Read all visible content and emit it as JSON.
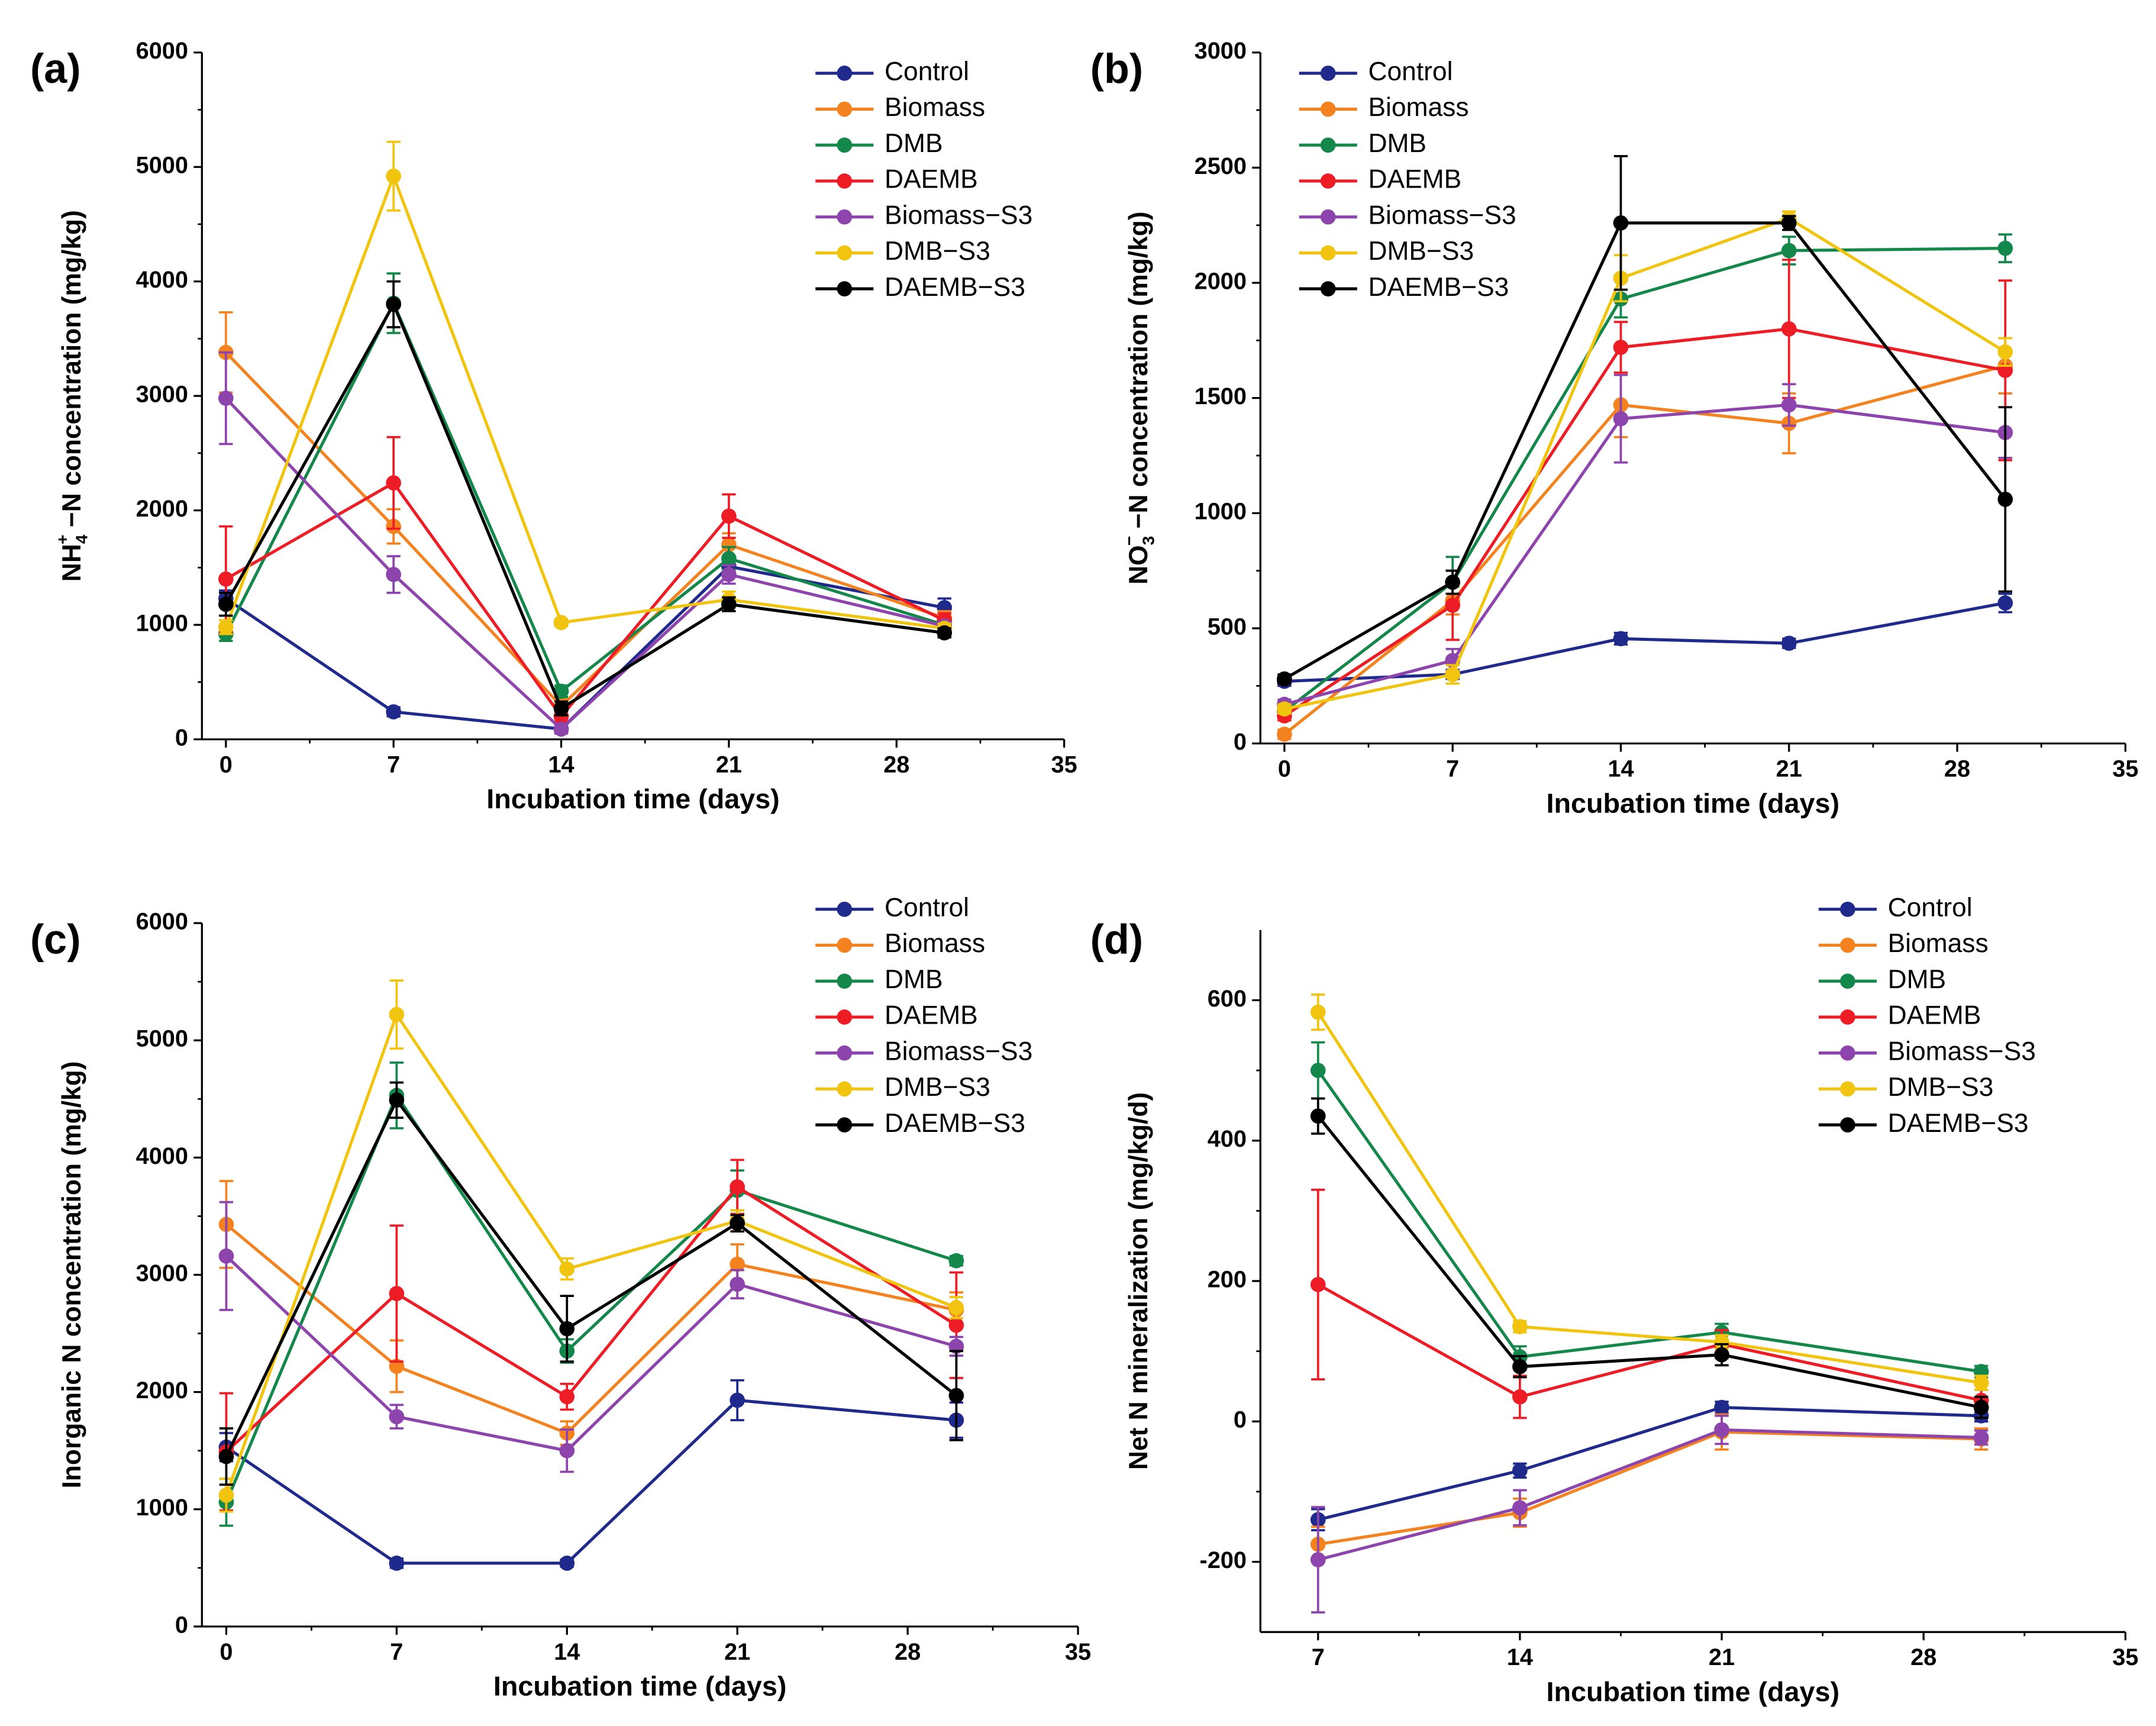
{
  "figure": {
    "series_colors": {
      "Control": "#1f2a8c",
      "Biomass": "#f4831f",
      "DMB": "#14884a",
      "DAEMB": "#ee1c25",
      "Biomass−S3": "#8e44ad",
      "DMB−S3": "#f1c40f",
      "DAEMB−S3": "#000000"
    }
  },
  "chart_data": [
    {
      "panel": "(a)",
      "type": "line",
      "xlabel": "Incubation time (days)",
      "ylabel": "NH4+−N concentration (mg/kg)",
      "ylabel_parts": {
        "base": "NH",
        "sub": "4",
        "sup": "+",
        "rest": " −N concentration (mg/kg)"
      },
      "xlim": [
        -1,
        35
      ],
      "ylim": [
        0,
        6000
      ],
      "xticks": [
        0,
        7,
        14,
        21,
        28,
        35
      ],
      "yticks": [
        0,
        1000,
        2000,
        3000,
        4000,
        5000,
        6000
      ],
      "legend_position": "top-right",
      "x": [
        0,
        7,
        14,
        21,
        30
      ],
      "series": [
        {
          "name": "Control",
          "values": [
            1230,
            240,
            90,
            1510,
            1150
          ],
          "errors": [
            70,
            40,
            30,
            70,
            80
          ]
        },
        {
          "name": "Biomass",
          "values": [
            3380,
            1860,
            290,
            1700,
            1060
          ],
          "errors": [
            350,
            150,
            60,
            100,
            60
          ]
        },
        {
          "name": "DMB",
          "values": [
            920,
            3810,
            420,
            1580,
            1000
          ],
          "errors": [
            60,
            260,
            50,
            100,
            50
          ]
        },
        {
          "name": "DAEMB",
          "values": [
            1400,
            2240,
            200,
            1950,
            1040
          ],
          "errors": [
            460,
            400,
            50,
            190,
            60
          ]
        },
        {
          "name": "Biomass−S3",
          "values": [
            2980,
            1440,
            90,
            1440,
            990
          ],
          "errors": [
            400,
            160,
            40,
            80,
            40
          ]
        },
        {
          "name": "DMB−S3",
          "values": [
            980,
            4920,
            1020,
            1220,
            970
          ],
          "errors": [
            60,
            300,
            30,
            70,
            40
          ]
        },
        {
          "name": "DAEMB−S3",
          "values": [
            1180,
            3800,
            270,
            1180,
            930
          ],
          "errors": [
            100,
            200,
            60,
            60,
            40
          ]
        }
      ]
    },
    {
      "panel": "(b)",
      "type": "line",
      "xlabel": "Incubation time (days)",
      "ylabel": "NO3−−N concentration (mg/kg)",
      "ylabel_parts": {
        "base": "NO",
        "sub": "3",
        "sup": "−",
        "rest": " −N concentration (mg/kg)"
      },
      "xlim": [
        -1,
        35
      ],
      "ylim": [
        0,
        3000
      ],
      "xticks": [
        0,
        7,
        14,
        21,
        28,
        35
      ],
      "yticks": [
        0,
        500,
        1000,
        1500,
        2000,
        2500,
        3000
      ],
      "legend_position": "top-left",
      "x": [
        0,
        7,
        14,
        21,
        30
      ],
      "series": [
        {
          "name": "Control",
          "values": [
            270,
            300,
            455,
            435,
            610
          ],
          "errors": [
            20,
            20,
            25,
            20,
            40
          ]
        },
        {
          "name": "Biomass",
          "values": [
            40,
            620,
            1470,
            1390,
            1640
          ],
          "errors": [
            20,
            60,
            140,
            130,
            120
          ]
        },
        {
          "name": "DMB",
          "values": [
            140,
            700,
            1930,
            2140,
            2150
          ],
          "errors": [
            20,
            110,
            80,
            60,
            60
          ]
        },
        {
          "name": "DAEMB",
          "values": [
            120,
            600,
            1720,
            1800,
            1620
          ],
          "errors": [
            20,
            150,
            110,
            300,
            390
          ]
        },
        {
          "name": "Biomass−S3",
          "values": [
            170,
            360,
            1410,
            1470,
            1350
          ],
          "errors": [
            20,
            50,
            190,
            90,
            110
          ]
        },
        {
          "name": "DMB−S3",
          "values": [
            150,
            300,
            2020,
            2280,
            1700
          ],
          "errors": [
            20,
            40,
            100,
            30,
            60
          ]
        },
        {
          "name": "DAEMB−S3",
          "values": [
            280,
            700,
            2260,
            2260,
            1060
          ],
          "errors": [
            20,
            50,
            290,
            30,
            400
          ]
        }
      ]
    },
    {
      "panel": "(c)",
      "type": "line",
      "xlabel": "Incubation time (days)",
      "ylabel": "Inorganic N concentration (mg/kg)",
      "xlim": [
        -1,
        35
      ],
      "ylim": [
        0,
        6000
      ],
      "xticks": [
        0,
        7,
        14,
        21,
        28,
        35
      ],
      "yticks": [
        0,
        1000,
        2000,
        3000,
        4000,
        5000,
        6000
      ],
      "legend_position": "top-right",
      "x": [
        0,
        7,
        14,
        21,
        30
      ],
      "series": [
        {
          "name": "Control",
          "values": [
            1530,
            540,
            540,
            1930,
            1760
          ],
          "errors": [
            120,
            40,
            30,
            170,
            150
          ]
        },
        {
          "name": "Biomass",
          "values": [
            3430,
            2220,
            1650,
            3090,
            2700
          ],
          "errors": [
            370,
            220,
            100,
            170,
            150
          ]
        },
        {
          "name": "DMB",
          "values": [
            1060,
            4530,
            2350,
            3720,
            3120
          ],
          "errors": [
            200,
            280,
            100,
            170,
            40
          ]
        },
        {
          "name": "DAEMB",
          "values": [
            1490,
            2840,
            1960,
            3750,
            2570
          ],
          "errors": [
            500,
            580,
            110,
            230,
            450
          ]
        },
        {
          "name": "Biomass−S3",
          "values": [
            3160,
            1790,
            1500,
            2920,
            2390
          ],
          "errors": [
            460,
            100,
            180,
            120,
            80
          ]
        },
        {
          "name": "DMB−S3",
          "values": [
            1120,
            5220,
            3050,
            3460,
            2720
          ],
          "errors": [
            140,
            290,
            90,
            90,
            90
          ]
        },
        {
          "name": "DAEMB−S3",
          "values": [
            1450,
            4490,
            2540,
            3440,
            1970
          ],
          "errors": [
            240,
            150,
            280,
            70,
            380
          ]
        }
      ]
    },
    {
      "panel": "(d)",
      "type": "line",
      "xlabel": "Incubation time (days)",
      "ylabel": "Net N mineralization (mg/kg/d)",
      "xlim": [
        5,
        35
      ],
      "ylim": [
        -300,
        700
      ],
      "xticks": [
        7,
        14,
        21,
        28,
        35
      ],
      "yticks": [
        -200,
        0,
        200,
        400,
        600
      ],
      "legend_position": "top-right",
      "x": [
        7,
        14,
        21,
        30
      ],
      "series": [
        {
          "name": "Control",
          "values": [
            -140,
            -70,
            20,
            8
          ],
          "errors": [
            15,
            10,
            8,
            8
          ]
        },
        {
          "name": "Biomass",
          "values": [
            -175,
            -130,
            -15,
            -25
          ],
          "errors": [
            25,
            20,
            25,
            15
          ]
        },
        {
          "name": "DMB",
          "values": [
            500,
            92,
            127,
            71
          ],
          "errors": [
            40,
            15,
            12,
            8
          ]
        },
        {
          "name": "DAEMB",
          "values": [
            195,
            35,
            110,
            30
          ],
          "errors": [
            135,
            30,
            20,
            15
          ]
        },
        {
          "name": "Biomass−S3",
          "values": [
            -197,
            -123,
            -12,
            -23
          ],
          "errors": [
            75,
            25,
            20,
            10
          ]
        },
        {
          "name": "DMB−S3",
          "values": [
            583,
            135,
            113,
            55
          ],
          "errors": [
            25,
            8,
            10,
            10
          ]
        },
        {
          "name": "DAEMB−S3",
          "values": [
            435,
            78,
            95,
            20
          ],
          "errors": [
            25,
            15,
            15,
            15
          ]
        }
      ]
    }
  ]
}
